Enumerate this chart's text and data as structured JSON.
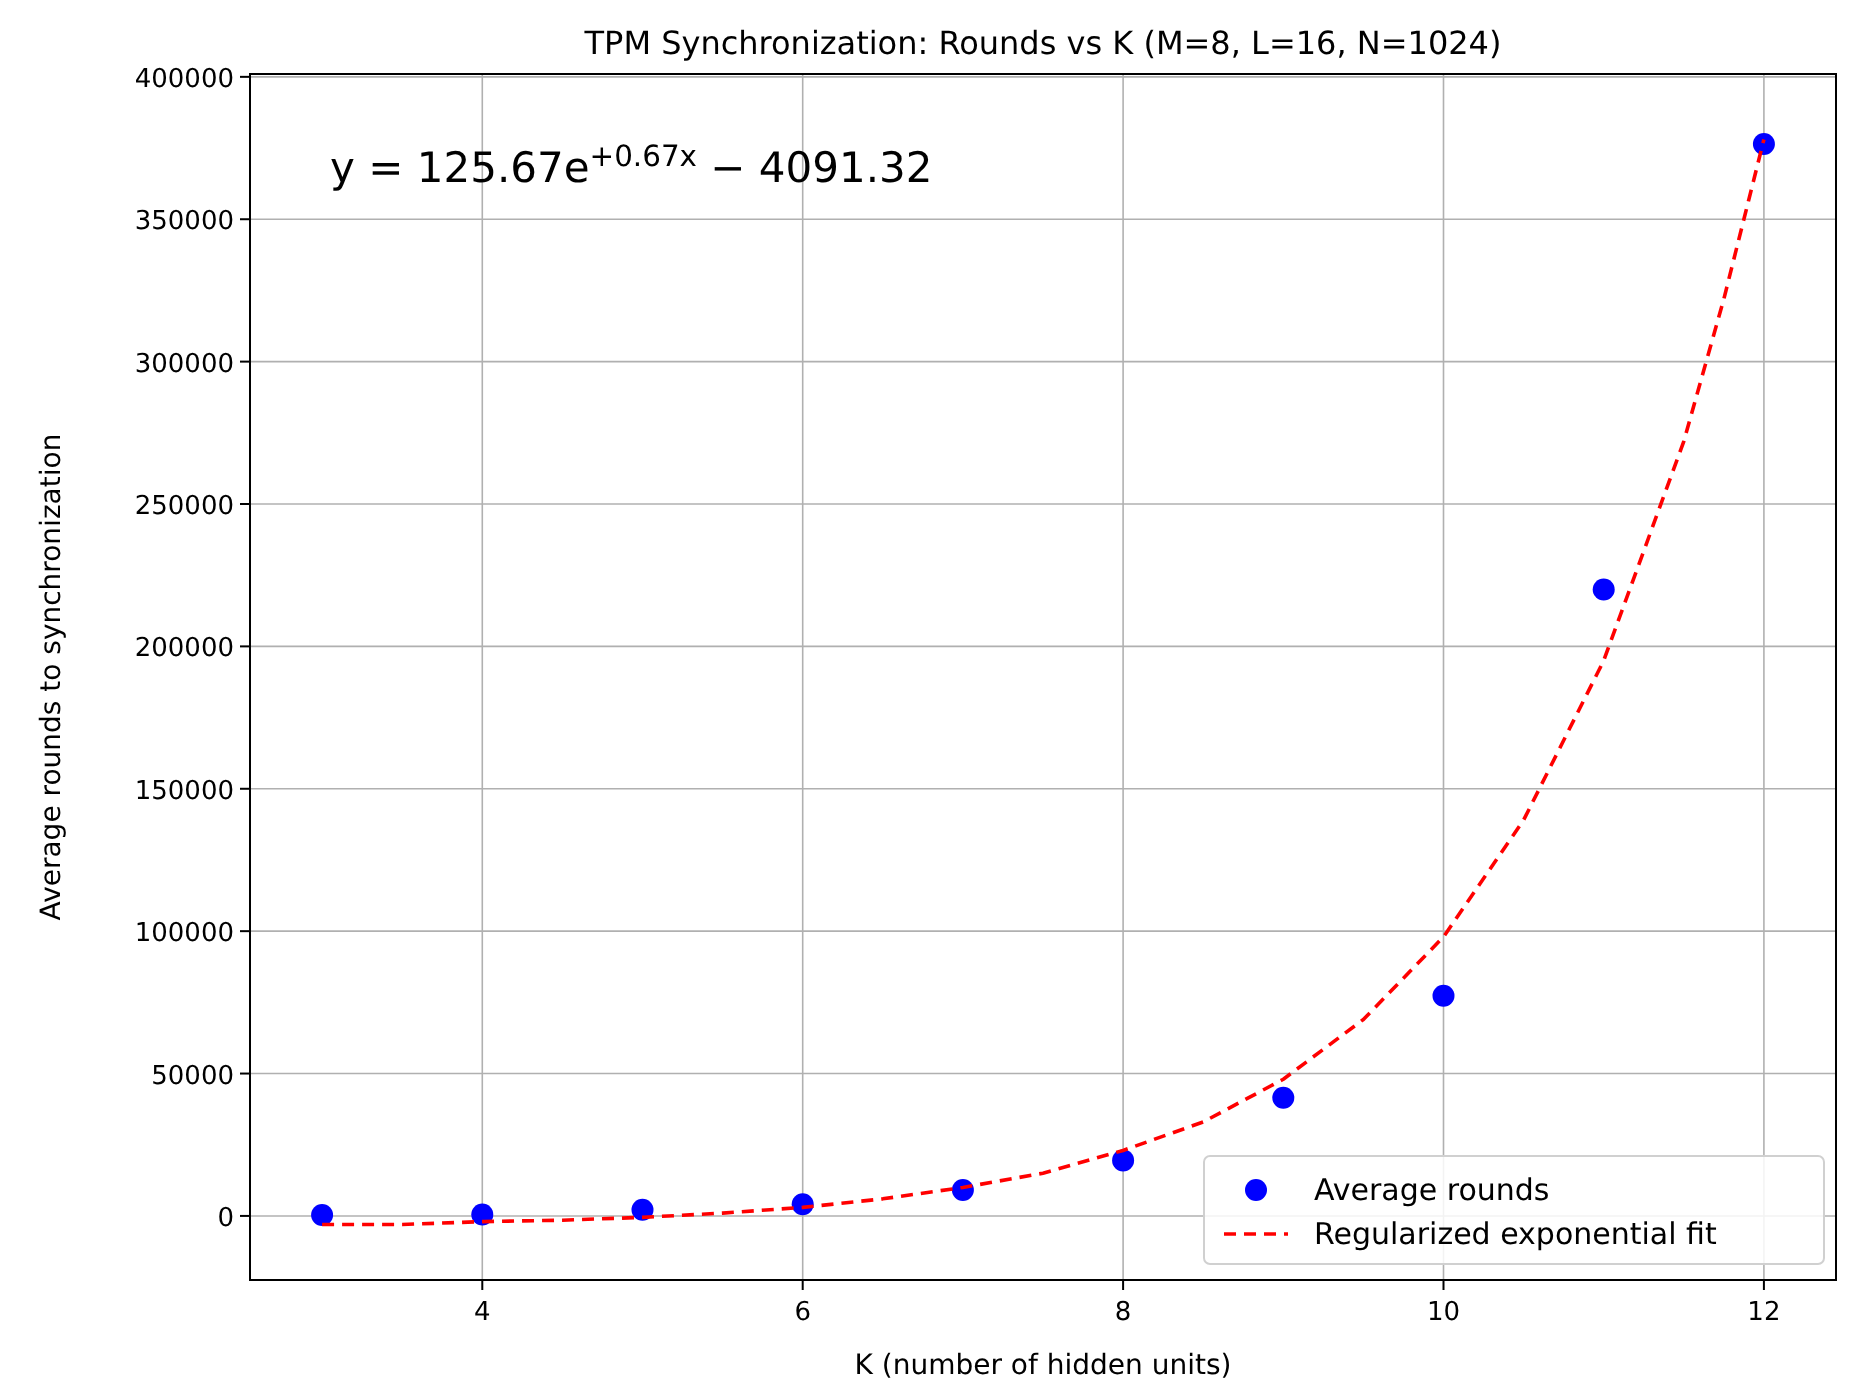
{
  "chart_data": {
    "type": "scatter",
    "title": "TPM Synchronization: Rounds vs K (M=8, L=16, N=1024)",
    "xlabel": "K (number of hidden units)",
    "ylabel": "Average rounds to synchronization",
    "x": [
      3,
      4,
      5,
      6,
      7,
      8,
      9,
      10,
      11,
      12
    ],
    "series": [
      {
        "name": "Average rounds",
        "color": "#0000ff",
        "marker": "circle",
        "values": [
          300,
          500,
          2200,
          4100,
          9100,
          19500,
          41500,
          77300,
          220000,
          376400
        ]
      },
      {
        "name": "Regularized exponential fit",
        "type": "line",
        "color": "#ff0000",
        "line_style": "dashed",
        "marker": "none",
        "x": [
          3,
          3.5,
          4,
          4.5,
          5,
          5.5,
          6,
          6.5,
          7,
          7.5,
          8,
          8.5,
          9,
          9.5,
          10,
          10.5,
          11,
          11.5,
          11.75,
          12
        ],
        "values": [
          -3000,
          -3000,
          -2000,
          -1500,
          -500,
          1000,
          3000,
          6000,
          10000,
          15000,
          23000,
          33000,
          48000,
          69000,
          98000,
          139000,
          195000,
          272000,
          322000,
          378000
        ]
      }
    ],
    "annotations": [
      "y = 125.67e$^{+0.67x}$ − 4091.32"
    ],
    "xlim": [
      2.55,
      12.45
    ],
    "xticks": [
      4,
      6,
      8,
      10,
      12
    ],
    "ylim": [
      -22500,
      401000
    ],
    "yticks": [
      0,
      50000,
      100000,
      150000,
      200000,
      250000,
      300000,
      350000,
      400000
    ],
    "grid": true,
    "legend": "bottom right"
  }
}
